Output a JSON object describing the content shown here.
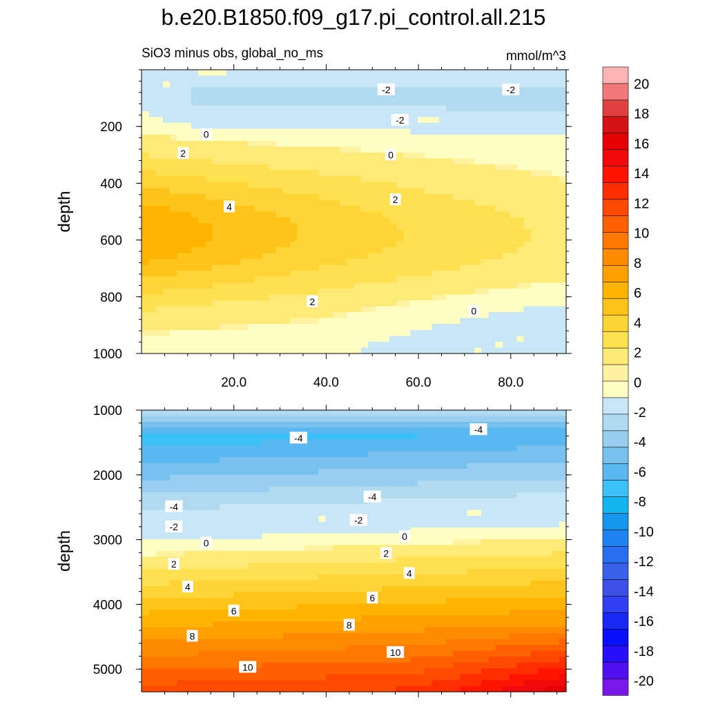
{
  "title": "b.e20.B1850.f09_g17.pi_control.all.215",
  "subtitle_left": "SiO3 minus obs, global_no_ms",
  "subtitle_right": "mmol/m^3",
  "chart_data": [
    {
      "type": "heatmap",
      "panel": "upper",
      "title": "SiO3 minus obs, global_no_ms",
      "units": "mmol/m^3",
      "xlabel": "",
      "ylabel": "depth",
      "xlim": [
        0,
        92
      ],
      "ylim": [
        1000,
        0
      ],
      "x_ticks": [
        20,
        40,
        60,
        80
      ],
      "x_tick_labels": [
        "20.0",
        "40.0",
        "60.0",
        "80.0"
      ],
      "y_ticks": [
        200,
        400,
        600,
        800,
        1000
      ],
      "y_tick_labels": [
        "200",
        "400",
        "600",
        "800",
        "1000"
      ],
      "contour_interval": 1,
      "contour_labels": [
        {
          "text": "-2",
          "x": 53,
          "y": 70
        },
        {
          "text": "-2",
          "x": 80,
          "y": 70
        },
        {
          "text": "-2",
          "x": 56,
          "y": 178
        },
        {
          "text": "0",
          "x": 14,
          "y": 228
        },
        {
          "text": "2",
          "x": 9,
          "y": 295
        },
        {
          "text": "0",
          "x": 54,
          "y": 300
        },
        {
          "text": "2",
          "x": 55,
          "y": 458
        },
        {
          "text": "4",
          "x": 19,
          "y": 483
        },
        {
          "text": "2",
          "x": 37,
          "y": 817
        },
        {
          "text": "0",
          "x": 72,
          "y": 850
        }
      ]
    },
    {
      "type": "heatmap",
      "panel": "lower",
      "xlabel": "",
      "ylabel": "depth",
      "xlim": [
        0,
        92
      ],
      "ylim": [
        5350,
        1000
      ],
      "y_ticks": [
        1000,
        2000,
        3000,
        4000,
        5000
      ],
      "y_tick_labels": [
        "1000",
        "2000",
        "3000",
        "4000",
        "5000"
      ],
      "contour_interval": 1,
      "contour_labels": [
        {
          "text": "-4",
          "x": 34,
          "y": 1430
        },
        {
          "text": "-4",
          "x": 73,
          "y": 1300
        },
        {
          "text": "-4",
          "x": 7,
          "y": 2490
        },
        {
          "text": "-4",
          "x": 50,
          "y": 2340
        },
        {
          "text": "-2",
          "x": 7,
          "y": 2800
        },
        {
          "text": "-2",
          "x": 47,
          "y": 2700
        },
        {
          "text": "0",
          "x": 14,
          "y": 3050
        },
        {
          "text": "0",
          "x": 57,
          "y": 2950
        },
        {
          "text": "2",
          "x": 7,
          "y": 3380
        },
        {
          "text": "2",
          "x": 53,
          "y": 3210
        },
        {
          "text": "4",
          "x": 10,
          "y": 3730
        },
        {
          "text": "4",
          "x": 58,
          "y": 3520
        },
        {
          "text": "6",
          "x": 20,
          "y": 4100
        },
        {
          "text": "6",
          "x": 50,
          "y": 3900
        },
        {
          "text": "8",
          "x": 11,
          "y": 4490
        },
        {
          "text": "8",
          "x": 45,
          "y": 4320
        },
        {
          "text": "10",
          "x": 23,
          "y": 4970
        },
        {
          "text": "10",
          "x": 55,
          "y": 4740
        }
      ]
    }
  ],
  "colorbar": {
    "tick_labels": [
      "20",
      "18",
      "16",
      "14",
      "12",
      "10",
      "8",
      "6",
      "4",
      "2",
      "0",
      "-2",
      "-4",
      "-6",
      "-8",
      "-10",
      "-12",
      "-14",
      "-16",
      "-18",
      "-20"
    ],
    "colors": [
      "#ffb4b4",
      "#f07878",
      "#e04040",
      "#d41414",
      "#e40000",
      "#f00a0a",
      "#ff1400",
      "#ff2e00",
      "#ff4800",
      "#ff6000",
      "#ff7800",
      "#ff8c00",
      "#ffa000",
      "#ffb400",
      "#ffc41a",
      "#ffd436",
      "#ffe050",
      "#ffea78",
      "#fff2a0",
      "#ffffc4",
      "#c8e6f5",
      "#b0daf0",
      "#98cef0",
      "#78c0ee",
      "#5ab8f0",
      "#3cc0f8",
      "#14b4f0",
      "#1496ee",
      "#1e82f0",
      "#2a6ef0",
      "#3860e8",
      "#3c50e6",
      "#3040f0",
      "#1a28f4",
      "#0a10fa",
      "#2810f8",
      "#5010f0",
      "#7818e8"
    ]
  }
}
